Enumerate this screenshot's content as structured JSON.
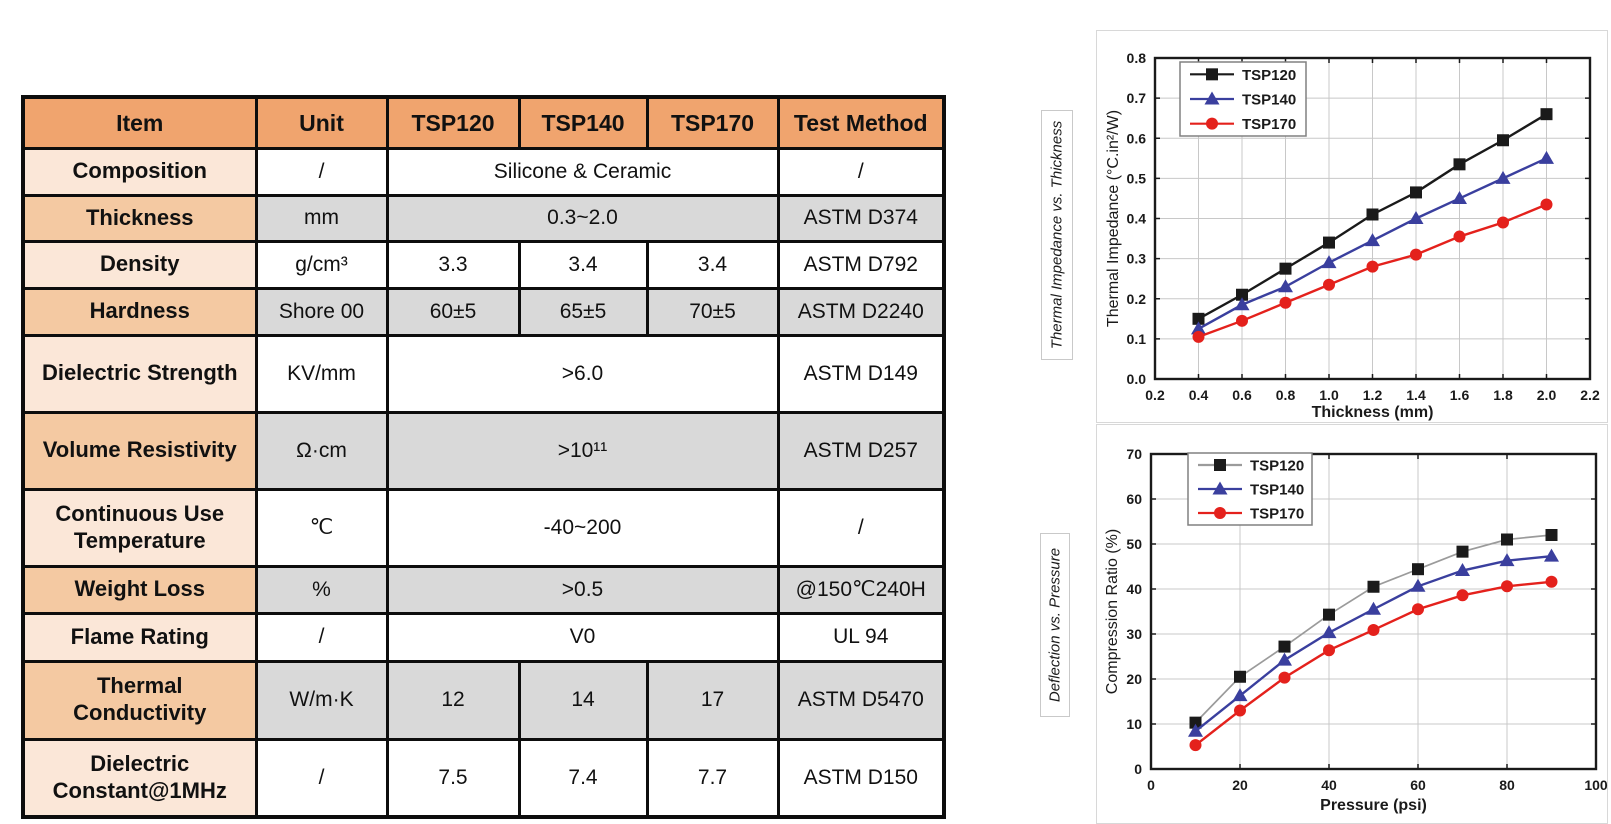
{
  "colors": {
    "header_orange": "#f0a46e",
    "item_peach_light": "#fbe7d8",
    "item_peach_medium": "#f4c9a2",
    "cell_gray": "#d9d9d9",
    "series_black": "#1a1a1a",
    "series_blue": "#3a3f9e",
    "series_red": "#e4211c"
  },
  "table": {
    "headers": [
      "Item",
      "Unit",
      "TSP120",
      "TSP140",
      "TSP170",
      "Test Method"
    ],
    "rows": [
      {
        "item": "Composition",
        "unit": "/",
        "value": "Silicone & Ceramic",
        "method": "/"
      },
      {
        "item": "Thickness",
        "unit": "mm",
        "value": "0.3~2.0",
        "method": "ASTM D374"
      },
      {
        "item": "Density",
        "unit": "g/cm³",
        "values": [
          "3.3",
          "3.4",
          "3.4"
        ],
        "method": "ASTM D792"
      },
      {
        "item": "Hardness",
        "unit": "Shore 00",
        "values": [
          "60±5",
          "65±5",
          "70±5"
        ],
        "method": "ASTM D2240"
      },
      {
        "item": "Dielectric Strength",
        "unit": "KV/mm",
        "value": ">6.0",
        "method": "ASTM D149"
      },
      {
        "item": "Volume Resistivity",
        "unit": "Ω·cm",
        "value": ">10¹¹",
        "method": "ASTM D257"
      },
      {
        "item": "Continuous Use Temperature",
        "unit": "℃",
        "value": "-40~200",
        "method": "/"
      },
      {
        "item": "Weight Loss",
        "unit": "%",
        "value": ">0.5",
        "method": "@150℃240H"
      },
      {
        "item": "Flame Rating",
        "unit": "/",
        "value": "V0",
        "method": "UL 94"
      },
      {
        "item": "Thermal Conductivity",
        "unit": "W/m·K",
        "values": [
          "12",
          "14",
          "17"
        ],
        "method": "ASTM D5470"
      },
      {
        "item": "Dielectric Constant@1MHz",
        "unit": "/",
        "values": [
          "7.5",
          "7.4",
          "7.7"
        ],
        "method": "ASTM D150"
      }
    ]
  },
  "chart_data": [
    {
      "type": "line",
      "panel_label": "Thermal Impedance vs. Thickness",
      "xlabel": "Thickness (mm)",
      "ylabel": "Thermal Impedance (°C.in²/W)",
      "xlim": [
        0.2,
        2.2
      ],
      "ylim": [
        0.0,
        0.8
      ],
      "xticks": [
        0.2,
        0.4,
        0.6,
        0.8,
        1.0,
        1.2,
        1.4,
        1.6,
        1.8,
        2.0,
        2.2
      ],
      "xtick_labels": [
        "0.2",
        "0.4",
        "0.6",
        "0.8",
        "1.0",
        "1.2",
        "1.4",
        "1.6",
        "1.8",
        "2.0",
        "2.2"
      ],
      "yticks": [
        0.0,
        0.1,
        0.2,
        0.3,
        0.4,
        0.5,
        0.6,
        0.7,
        0.8
      ],
      "ytick_labels": [
        "0.0",
        "0.1",
        "0.2",
        "0.3",
        "0.4",
        "0.5",
        "0.6",
        "0.7",
        "0.8"
      ],
      "grid": true,
      "legend_position": "top-left",
      "x": [
        0.4,
        0.6,
        0.8,
        1.0,
        1.2,
        1.4,
        1.6,
        1.8,
        2.0
      ],
      "series": [
        {
          "name": "TSP120",
          "marker": "square",
          "line_color": "#1a1a1a",
          "marker_color": "#1a1a1a",
          "line_width": 2.4,
          "values": [
            0.15,
            0.21,
            0.275,
            0.34,
            0.41,
            0.465,
            0.535,
            0.595,
            0.66
          ]
        },
        {
          "name": "TSP140",
          "marker": "triangle",
          "line_color": "#3a3f9e",
          "marker_color": "#3a3f9e",
          "line_width": 2.4,
          "values": [
            0.125,
            0.185,
            0.23,
            0.29,
            0.345,
            0.4,
            0.45,
            0.5,
            0.55
          ]
        },
        {
          "name": "TSP170",
          "marker": "circle",
          "line_color": "#e4211c",
          "marker_color": "#e4211c",
          "line_width": 2.4,
          "values": [
            0.105,
            0.145,
            0.19,
            0.235,
            0.28,
            0.31,
            0.355,
            0.39,
            0.435
          ]
        }
      ]
    },
    {
      "type": "line",
      "panel_label": "Deflection vs. Pressure",
      "xlabel": "Pressure (psi)",
      "ylabel": "Compression Ratio (%)",
      "xlim": [
        0,
        100
      ],
      "ylim": [
        0,
        70
      ],
      "xticks": [
        0,
        20,
        40,
        60,
        80,
        100
      ],
      "xtick_labels": [
        "0",
        "20",
        "40",
        "60",
        "80",
        "100"
      ],
      "yticks": [
        0,
        10,
        20,
        30,
        40,
        50,
        60,
        70
      ],
      "ytick_labels": [
        "0",
        "10",
        "20",
        "30",
        "40",
        "50",
        "60",
        "70"
      ],
      "grid": true,
      "legend_position": "top-left",
      "x": [
        10,
        20,
        30,
        40,
        50,
        60,
        70,
        80,
        90
      ],
      "series": [
        {
          "name": "TSP120",
          "marker": "square",
          "line_color": "#9b9b9b",
          "marker_color": "#1a1a1a",
          "line_width": 1.7,
          "values": [
            10.3,
            20.5,
            27.2,
            34.3,
            40.5,
            44.4,
            48.3,
            51.0,
            52.0
          ]
        },
        {
          "name": "TSP140",
          "marker": "triangle",
          "line_color": "#3a3f9e",
          "marker_color": "#3a3f9e",
          "line_width": 2.4,
          "values": [
            8.4,
            16.3,
            24.2,
            30.3,
            35.5,
            40.6,
            44.1,
            46.3,
            47.3
          ]
        },
        {
          "name": "TSP170",
          "marker": "circle",
          "line_color": "#e4211c",
          "marker_color": "#e4211c",
          "line_width": 2.4,
          "values": [
            5.3,
            13.0,
            20.3,
            26.4,
            30.9,
            35.5,
            38.6,
            40.6,
            41.6
          ]
        }
      ]
    }
  ]
}
